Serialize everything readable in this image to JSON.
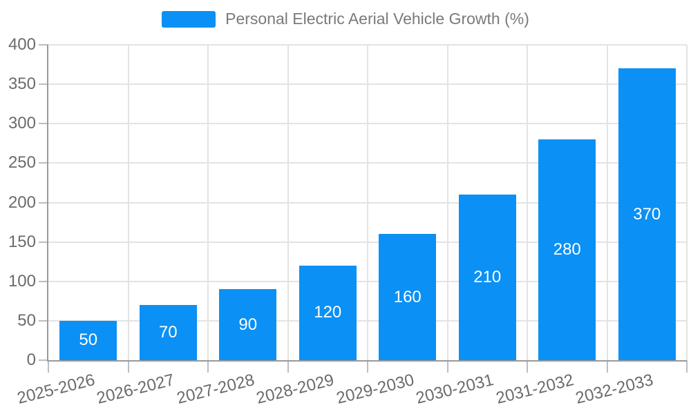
{
  "page": {
    "background": "#ffffff"
  },
  "legend": {
    "label": "Personal Electric Aerial Vehicle Growth (%)"
  },
  "chart_data": {
    "type": "bar",
    "title": "Personal Electric Aerial Vehicle Growth (%)",
    "categories": [
      "2025-2026",
      "2026-2027",
      "2027-2028",
      "2028-2029",
      "2029-2030",
      "2030-2031",
      "2031-2032",
      "2032-2033"
    ],
    "values": [
      50,
      70,
      90,
      120,
      160,
      210,
      280,
      370
    ],
    "xlabel": "",
    "ylabel": "",
    "ylim": [
      0,
      400
    ],
    "yticks": [
      0,
      50,
      100,
      150,
      200,
      250,
      300,
      350,
      400
    ],
    "grid": true,
    "legend_position": "top-center",
    "value_labels": "inside-center"
  },
  "colors": {
    "bar": "#0b90f5",
    "axis_line": "#999999",
    "tick": "#bdbdbd",
    "grid_line": "#e3e3e3",
    "axis_text": "#6b6b6b",
    "legend_text": "#7a7a7a",
    "value_label_text": "#ffffff",
    "background": "#ffffff"
  }
}
